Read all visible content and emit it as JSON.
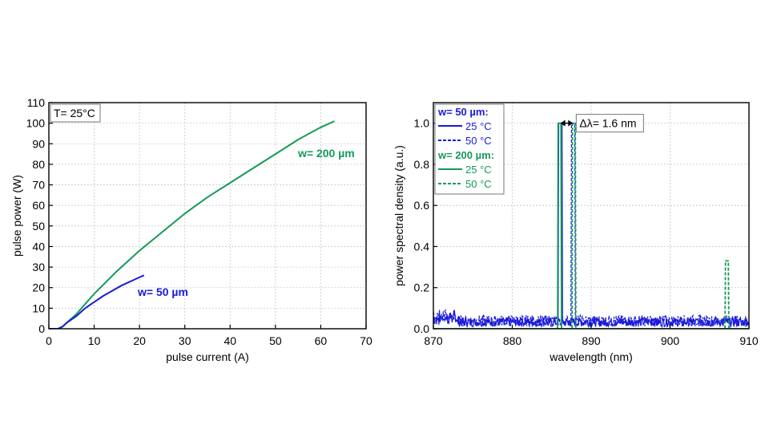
{
  "colors": {
    "blue": "#1a1adb",
    "green": "#149a5a",
    "grid": "#c8c8c8",
    "axis": "#000000"
  },
  "chart_data": [
    {
      "type": "line",
      "xlabel": "pulse current (A)",
      "ylabel": "pulse power (W)",
      "xlim": [
        0,
        70
      ],
      "ylim": [
        0,
        110
      ],
      "xticks": [
        0,
        10,
        20,
        30,
        40,
        50,
        60,
        70
      ],
      "yticks": [
        0,
        10,
        20,
        30,
        40,
        50,
        60,
        70,
        80,
        90,
        100,
        110
      ],
      "grid": true,
      "inset_label": "T= 25°C",
      "series": [
        {
          "name": "w= 200 µm",
          "color": "green",
          "x": [
            0,
            2,
            3,
            4,
            6,
            8,
            10,
            15,
            20,
            25,
            30,
            35,
            40,
            45,
            50,
            55,
            60,
            63
          ],
          "y": [
            0,
            0,
            1,
            3,
            7,
            12,
            17,
            28,
            38,
            47,
            56,
            64,
            71,
            78,
            85,
            92,
            98,
            101
          ]
        },
        {
          "name": "w= 50 µm",
          "color": "blue",
          "x": [
            0,
            2,
            3,
            4,
            6,
            8,
            10,
            12,
            14,
            16,
            18,
            20,
            21
          ],
          "y": [
            0,
            0,
            1,
            3,
            6,
            10,
            13,
            16,
            18.5,
            21,
            23,
            25,
            26
          ]
        }
      ]
    },
    {
      "type": "line",
      "xlabel": "wavelength (nm)",
      "ylabel": "power spectral density (a.u.)",
      "xlim": [
        870,
        910
      ],
      "ylim": [
        0,
        1.1
      ],
      "xticks": [
        870,
        880,
        890,
        900,
        910
      ],
      "yticks": [
        0.0,
        0.2,
        0.4,
        0.6,
        0.8,
        1.0
      ],
      "grid": true,
      "legend": {
        "groups": [
          {
            "title": "w= 50 µm:",
            "color": "blue",
            "entries": [
              {
                "label": "25 °C",
                "style": "solid"
              },
              {
                "label": "50 °C",
                "style": "dashed"
              }
            ]
          },
          {
            "title": "w= 200 µm:",
            "color": "green",
            "entries": [
              {
                "label": "25 °C",
                "style": "solid"
              },
              {
                "label": "50 °C",
                "style": "dashed"
              }
            ]
          }
        ]
      },
      "annotation": {
        "text": "Δλ= 1.6 nm",
        "from": 886.1,
        "to": 887.7,
        "y": 1.0
      },
      "series": [
        {
          "group": "w= 50 µm",
          "label": "25 °C",
          "color": "blue",
          "style": "solid",
          "peak": 886.1,
          "width": 0.5,
          "height": 1.0,
          "noise": 0.05
        },
        {
          "group": "w= 50 µm",
          "label": "50 °C",
          "color": "blue",
          "style": "dashed",
          "peak": 887.7,
          "width": 0.5,
          "height": 1.0,
          "noise": 0.06
        },
        {
          "group": "w= 200 µm",
          "label": "25 °C",
          "color": "green",
          "style": "solid",
          "peak": 886.0,
          "width": 0.45,
          "height": 1.0,
          "noise": 0.0
        },
        {
          "group": "w= 200 µm",
          "label": "50 °C",
          "color": "green",
          "style": "dashed",
          "peak": 887.8,
          "width": 0.45,
          "height": 1.0,
          "noise": 0.0,
          "extra_peak": 907.2,
          "extra_height": 0.33
        }
      ]
    }
  ]
}
